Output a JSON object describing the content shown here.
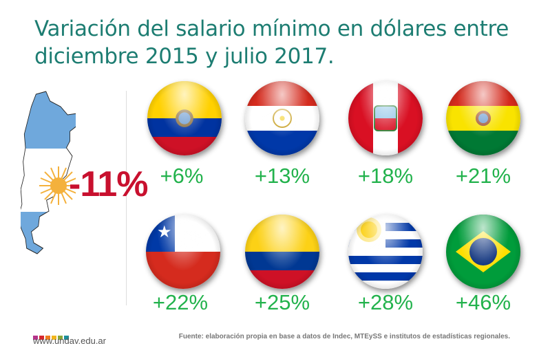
{
  "title": "Variación del salario mínimo en dólares entre diciembre 2015 y julio 2017.",
  "argentina": {
    "country": "Argentina",
    "value": "-11%",
    "icon": "argentina-map-flag-icon"
  },
  "countries": [
    {
      "country": "Ecuador",
      "value": "+6%",
      "icon": "ecuador-flag-icon"
    },
    {
      "country": "Paraguay",
      "value": "+13%",
      "icon": "paraguay-flag-icon"
    },
    {
      "country": "Perú",
      "value": "+18%",
      "icon": "peru-flag-icon"
    },
    {
      "country": "Bolivia",
      "value": "+21%",
      "icon": "bolivia-flag-icon"
    },
    {
      "country": "Chile",
      "value": "+22%",
      "icon": "chile-flag-icon"
    },
    {
      "country": "Colombia",
      "value": "+25%",
      "icon": "colombia-flag-icon"
    },
    {
      "country": "Uruguay",
      "value": "+28%",
      "icon": "uruguay-flag-icon"
    },
    {
      "country": "Brasil",
      "value": "+46%",
      "icon": "brazil-flag-icon"
    }
  ],
  "footer": {
    "url": "www.undav.edu.ar",
    "source": "Fuente: elaboración propia en base a datos de Indec, MTEySS e institutos de estadísticas regionales.",
    "logo_colors": [
      "#b5338a",
      "#d7282f",
      "#ee7d1f",
      "#f2b51c",
      "#8aa63a",
      "#1c8e9a"
    ]
  },
  "colors": {
    "title": "#1d7d72",
    "positive": "#22b24c",
    "negative": "#c8102e"
  }
}
